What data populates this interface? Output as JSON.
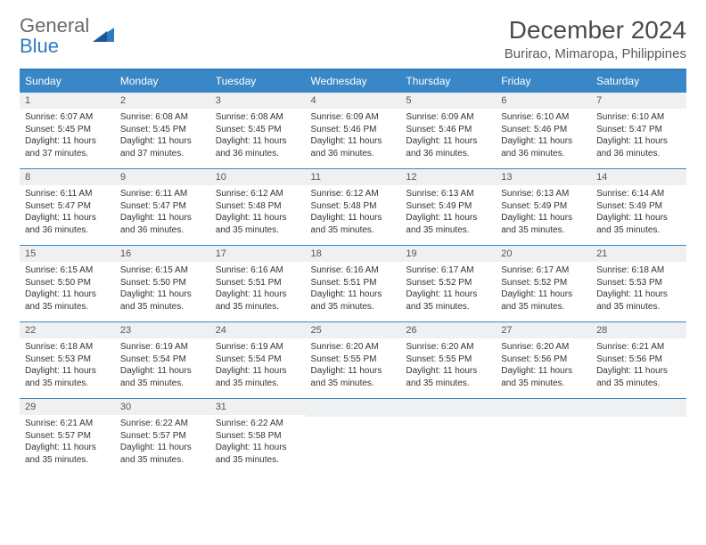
{
  "logo": {
    "general": "General",
    "blue": "Blue"
  },
  "title": "December 2024",
  "location": "Burirao, Mimaropa, Philippines",
  "colors": {
    "header_bg": "#3a87c8",
    "header_text": "#ffffff",
    "row_border": "#3a87c8",
    "daynum_bg": "#eef0f2",
    "page_bg": "#ffffff",
    "text": "#333333",
    "logo_gray": "#6a6a6a",
    "logo_blue": "#2f7bbf"
  },
  "day_headers": [
    "Sunday",
    "Monday",
    "Tuesday",
    "Wednesday",
    "Thursday",
    "Friday",
    "Saturday"
  ],
  "weeks": [
    [
      {
        "n": "1",
        "sr": "6:07 AM",
        "ss": "5:45 PM",
        "dl": "11 hours and 37 minutes."
      },
      {
        "n": "2",
        "sr": "6:08 AM",
        "ss": "5:45 PM",
        "dl": "11 hours and 37 minutes."
      },
      {
        "n": "3",
        "sr": "6:08 AM",
        "ss": "5:45 PM",
        "dl": "11 hours and 36 minutes."
      },
      {
        "n": "4",
        "sr": "6:09 AM",
        "ss": "5:46 PM",
        "dl": "11 hours and 36 minutes."
      },
      {
        "n": "5",
        "sr": "6:09 AM",
        "ss": "5:46 PM",
        "dl": "11 hours and 36 minutes."
      },
      {
        "n": "6",
        "sr": "6:10 AM",
        "ss": "5:46 PM",
        "dl": "11 hours and 36 minutes."
      },
      {
        "n": "7",
        "sr": "6:10 AM",
        "ss": "5:47 PM",
        "dl": "11 hours and 36 minutes."
      }
    ],
    [
      {
        "n": "8",
        "sr": "6:11 AM",
        "ss": "5:47 PM",
        "dl": "11 hours and 36 minutes."
      },
      {
        "n": "9",
        "sr": "6:11 AM",
        "ss": "5:47 PM",
        "dl": "11 hours and 36 minutes."
      },
      {
        "n": "10",
        "sr": "6:12 AM",
        "ss": "5:48 PM",
        "dl": "11 hours and 35 minutes."
      },
      {
        "n": "11",
        "sr": "6:12 AM",
        "ss": "5:48 PM",
        "dl": "11 hours and 35 minutes."
      },
      {
        "n": "12",
        "sr": "6:13 AM",
        "ss": "5:49 PM",
        "dl": "11 hours and 35 minutes."
      },
      {
        "n": "13",
        "sr": "6:13 AM",
        "ss": "5:49 PM",
        "dl": "11 hours and 35 minutes."
      },
      {
        "n": "14",
        "sr": "6:14 AM",
        "ss": "5:49 PM",
        "dl": "11 hours and 35 minutes."
      }
    ],
    [
      {
        "n": "15",
        "sr": "6:15 AM",
        "ss": "5:50 PM",
        "dl": "11 hours and 35 minutes."
      },
      {
        "n": "16",
        "sr": "6:15 AM",
        "ss": "5:50 PM",
        "dl": "11 hours and 35 minutes."
      },
      {
        "n": "17",
        "sr": "6:16 AM",
        "ss": "5:51 PM",
        "dl": "11 hours and 35 minutes."
      },
      {
        "n": "18",
        "sr": "6:16 AM",
        "ss": "5:51 PM",
        "dl": "11 hours and 35 minutes."
      },
      {
        "n": "19",
        "sr": "6:17 AM",
        "ss": "5:52 PM",
        "dl": "11 hours and 35 minutes."
      },
      {
        "n": "20",
        "sr": "6:17 AM",
        "ss": "5:52 PM",
        "dl": "11 hours and 35 minutes."
      },
      {
        "n": "21",
        "sr": "6:18 AM",
        "ss": "5:53 PM",
        "dl": "11 hours and 35 minutes."
      }
    ],
    [
      {
        "n": "22",
        "sr": "6:18 AM",
        "ss": "5:53 PM",
        "dl": "11 hours and 35 minutes."
      },
      {
        "n": "23",
        "sr": "6:19 AM",
        "ss": "5:54 PM",
        "dl": "11 hours and 35 minutes."
      },
      {
        "n": "24",
        "sr": "6:19 AM",
        "ss": "5:54 PM",
        "dl": "11 hours and 35 minutes."
      },
      {
        "n": "25",
        "sr": "6:20 AM",
        "ss": "5:55 PM",
        "dl": "11 hours and 35 minutes."
      },
      {
        "n": "26",
        "sr": "6:20 AM",
        "ss": "5:55 PM",
        "dl": "11 hours and 35 minutes."
      },
      {
        "n": "27",
        "sr": "6:20 AM",
        "ss": "5:56 PM",
        "dl": "11 hours and 35 minutes."
      },
      {
        "n": "28",
        "sr": "6:21 AM",
        "ss": "5:56 PM",
        "dl": "11 hours and 35 minutes."
      }
    ],
    [
      {
        "n": "29",
        "sr": "6:21 AM",
        "ss": "5:57 PM",
        "dl": "11 hours and 35 minutes."
      },
      {
        "n": "30",
        "sr": "6:22 AM",
        "ss": "5:57 PM",
        "dl": "11 hours and 35 minutes."
      },
      {
        "n": "31",
        "sr": "6:22 AM",
        "ss": "5:58 PM",
        "dl": "11 hours and 35 minutes."
      },
      null,
      null,
      null,
      null
    ]
  ],
  "labels": {
    "sunrise": "Sunrise: ",
    "sunset": "Sunset: ",
    "daylight": "Daylight: "
  }
}
